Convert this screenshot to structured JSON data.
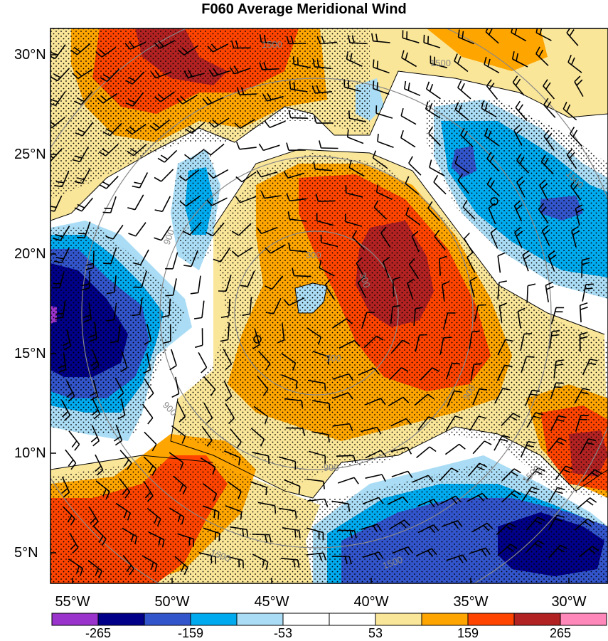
{
  "title": "F060 Average Meridional Wind",
  "lat_labels": [
    "30°N",
    "25°N",
    "20°N",
    "15°N",
    "10°N",
    "5°N"
  ],
  "lon_labels": [
    "55°W",
    "50°W",
    "45°W",
    "40°W",
    "35°W",
    "30°W"
  ],
  "contour_labels": [
    "1500",
    "1500",
    "1500",
    "1500",
    "1500",
    "1500",
    "900",
    "900",
    "900",
    "900",
    "300",
    "300",
    "300"
  ],
  "colorbar": {
    "labels": [
      "-265",
      "-159",
      "-53",
      "53",
      "159",
      "265"
    ],
    "colors": [
      "#9933cc",
      "#000088",
      "#3355cc",
      "#00aaee",
      "#aaddf5",
      "#ffffff",
      "#ffffff",
      "#fae699",
      "#ffa500",
      "#ff4400",
      "#b22222",
      "#ff88bb"
    ]
  },
  "field_colors": {
    "strong_neg": "#000088",
    "mod_neg": "#3355cc",
    "weak_neg": "#00aaee",
    "light_neg": "#aaddf5",
    "neutral": "#ffffff",
    "light_pos": "#fae699",
    "mod_pos": "#ffa500",
    "strong_pos": "#ff4400",
    "very_strong_pos": "#b22222"
  }
}
